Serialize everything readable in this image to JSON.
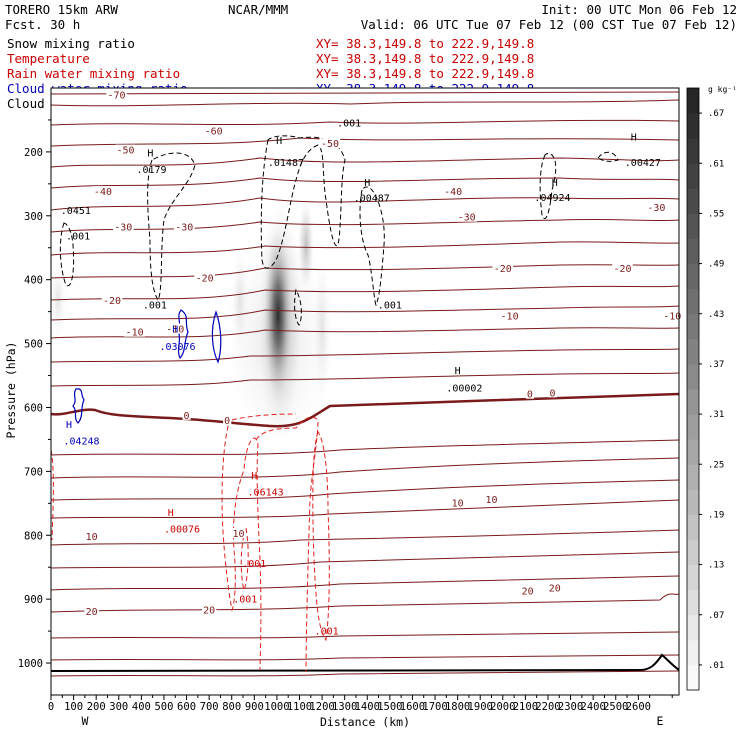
{
  "header": {
    "model": "TORERO  15km ARW",
    "center": "NCAR/MMM",
    "init": "Init: 00 UTC Mon 06 Feb 12",
    "fcst": "Fcst.   30 h",
    "valid": "Valid: 06 UTC Tue 07 Feb 12 (00 CST Tue 07 Feb 12)"
  },
  "fields": [
    {
      "name": "Snow mixing ratio",
      "xy": "XY=  38.3,149.8 to 222.9,149.8",
      "color": "#000000"
    },
    {
      "name": "Temperature",
      "xy": "XY=  38.3,149.8 to 222.9,149.8",
      "color": "#cc0000"
    },
    {
      "name": "Rain water mixing ratio",
      "xy": "XY=  38.3,149.8 to 222.9,149.8",
      "color": "#cc0000"
    },
    {
      "name": "Cloud water mixing ratio",
      "xy": "XY=  38.3,149.8 to 222.9,149.8",
      "color": "#0000bb"
    },
    {
      "name": "Cloud ice mixing ratio",
      "xy": "XY=  38.3,149.8 to 222.9,149.8",
      "color": "#000000"
    }
  ],
  "chart_data": {
    "type": "heatmap",
    "title": "Vertical cross section",
    "xlabel": "Distance (km)",
    "ylabel": "Pressure (hPa)",
    "xlim": [
      0,
      2780
    ],
    "ylim": [
      1050,
      100
    ],
    "x_ticks": [
      0,
      100,
      200,
      300,
      400,
      500,
      600,
      700,
      800,
      900,
      1000,
      1100,
      1200,
      1300,
      1400,
      1500,
      1600,
      1700,
      1800,
      1900,
      2000,
      2100,
      2200,
      2300,
      2400,
      2500,
      2600
    ],
    "y_ticks": [
      200,
      300,
      400,
      500,
      600,
      700,
      800,
      900,
      1000
    ],
    "x_end_labels": {
      "left": "W",
      "right": "E"
    },
    "colorbar": {
      "units": "g kg⁻¹",
      "labels": [
        ".01",
        ".07",
        ".13",
        ".19",
        ".25",
        ".31",
        ".37",
        ".43",
        ".49",
        ".55",
        ".61",
        ".67"
      ],
      "levels": 24,
      "min": 0.01,
      "max": 0.7
    },
    "snow_max": {
      "x": 1000,
      "p": 470,
      "value": 0.72
    },
    "temperature_labels": [
      {
        "x": 290,
        "p": 112,
        "text": "-70"
      },
      {
        "x": 720,
        "p": 168,
        "text": "-60"
      },
      {
        "x": 330,
        "p": 198,
        "text": "-50"
      },
      {
        "x": 1235,
        "p": 188,
        "text": "-50"
      },
      {
        "x": 230,
        "p": 263,
        "text": "-40"
      },
      {
        "x": 1780,
        "p": 263,
        "text": "-40"
      },
      {
        "x": 320,
        "p": 318,
        "text": "-30"
      },
      {
        "x": 590,
        "p": 318,
        "text": "-30"
      },
      {
        "x": 1840,
        "p": 303,
        "text": "-30"
      },
      {
        "x": 2680,
        "p": 288,
        "text": "-30"
      },
      {
        "x": 680,
        "p": 398,
        "text": "-20"
      },
      {
        "x": 2000,
        "p": 383,
        "text": "-20"
      },
      {
        "x": 2530,
        "p": 383,
        "text": "-20"
      },
      {
        "x": 270,
        "p": 433,
        "text": "-20"
      },
      {
        "x": 550,
        "p": 478,
        "text": "-10"
      },
      {
        "x": 2030,
        "p": 458,
        "text": "-10"
      },
      {
        "x": 2750,
        "p": 458,
        "text": "-10"
      },
      {
        "x": 370,
        "p": 483,
        "text": "-10"
      },
      {
        "x": 600,
        "p": 613,
        "text": "0"
      },
      {
        "x": 780,
        "p": 621,
        "text": "0"
      },
      {
        "x": 2120,
        "p": 580,
        "text": "0"
      },
      {
        "x": 2220,
        "p": 578,
        "text": "0"
      },
      {
        "x": 1800,
        "p": 750,
        "text": "10"
      },
      {
        "x": 1950,
        "p": 745,
        "text": "10"
      },
      {
        "x": 180,
        "p": 803,
        "text": "10"
      },
      {
        "x": 830,
        "p": 798,
        "text": "10"
      },
      {
        "x": 180,
        "p": 920,
        "text": "20"
      },
      {
        "x": 700,
        "p": 918,
        "text": "20"
      },
      {
        "x": 2110,
        "p": 888,
        "text": "20"
      },
      {
        "x": 2230,
        "p": 883,
        "text": "20"
      }
    ],
    "extrema_labels": [
      {
        "x": 110,
        "p": 297,
        "text": ".0451",
        "color": "#000000"
      },
      {
        "x": 120,
        "p": 337,
        "text": ".001",
        "color": "#000000"
      },
      {
        "x": 445,
        "p": 233,
        "text": ".0179",
        "color": "#000000"
      },
      {
        "x": 460,
        "p": 445,
        "text": ".001",
        "color": "#000000"
      },
      {
        "x": 1040,
        "p": 222,
        "text": ".01487",
        "color": "#000000"
      },
      {
        "x": 1320,
        "p": 160,
        "text": ".001",
        "color": "#000000"
      },
      {
        "x": 1420,
        "p": 278,
        "text": ".00487",
        "color": "#000000"
      },
      {
        "x": 1500,
        "p": 445,
        "text": ".001",
        "color": "#000000"
      },
      {
        "x": 2220,
        "p": 277,
        "text": ".04924",
        "color": "#000000"
      },
      {
        "x": 2620,
        "p": 222,
        "text": ".00427",
        "color": "#000000"
      },
      {
        "x": 1830,
        "p": 575,
        "text": ".00002",
        "color": "#000000"
      },
      {
        "x": 560,
        "p": 510,
        "text": ".03076",
        "color": "#0000bb"
      },
      {
        "x": 135,
        "p": 658,
        "text": ".04248",
        "color": "#0000bb"
      },
      {
        "x": 950,
        "p": 738,
        "text": ".06143",
        "color": "#cc0000"
      },
      {
        "x": 580,
        "p": 796,
        "text": ".00076",
        "color": "#cc0000"
      },
      {
        "x": 900,
        "p": 850,
        "text": ".001",
        "color": "#cc0000"
      },
      {
        "x": 860,
        "p": 905,
        "text": ".001",
        "color": "#cc0000"
      },
      {
        "x": 1220,
        "p": 955,
        "text": ".001",
        "color": "#cc0000"
      }
    ],
    "high_markers": [
      {
        "x": 440,
        "p": 207,
        "text": "H",
        "color": "#000000"
      },
      {
        "x": 1010,
        "p": 188,
        "text": "H",
        "color": "#000000"
      },
      {
        "x": 1400,
        "p": 253,
        "text": "H",
        "color": "#000000"
      },
      {
        "x": 2230,
        "p": 253,
        "text": "H",
        "color": "#000000"
      },
      {
        "x": 2580,
        "p": 182,
        "text": "H",
        "color": "#000000"
      },
      {
        "x": 1800,
        "p": 548,
        "text": "H",
        "color": "#000000"
      },
      {
        "x": 550,
        "p": 483,
        "text": "H",
        "color": "#0000bb"
      },
      {
        "x": 80,
        "p": 632,
        "text": "H",
        "color": "#0000bb"
      },
      {
        "x": 900,
        "p": 712,
        "text": "H",
        "color": "#cc0000"
      },
      {
        "x": 530,
        "p": 770,
        "text": "H",
        "color": "#cc0000"
      }
    ]
  }
}
